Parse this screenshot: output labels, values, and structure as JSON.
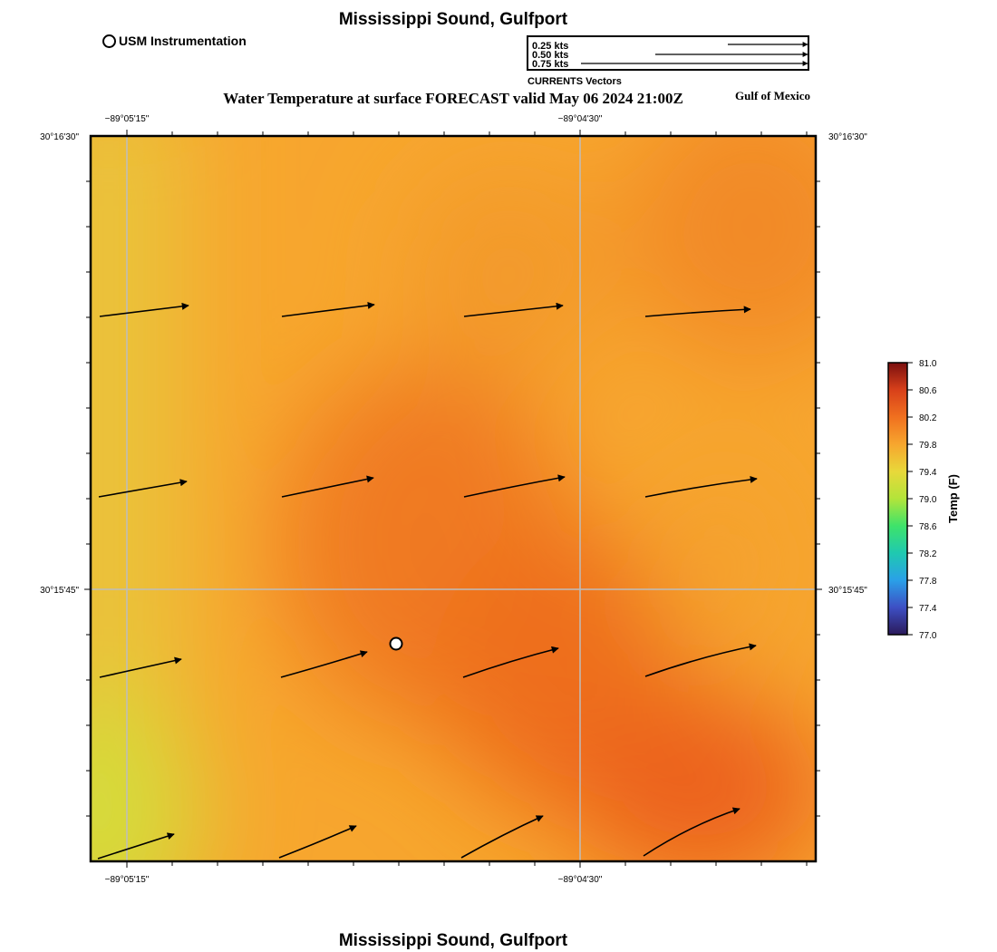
{
  "map": {
    "title": "Mississippi Sound, Gulfport",
    "footer_title": "Mississippi Sound, Gulfport",
    "forecast_title": "Water Temperature at surface FORECAST valid May 06 2024 21:00Z",
    "region_label": "Gulf of Mexico",
    "usm_legend_label": "USM Instrumentation",
    "longitude_ticks": [
      {
        "label": "−89°05'15\"",
        "value": -89.0875
      },
      {
        "label": "−89°04'30\"",
        "value": -89.075
      }
    ],
    "latitude_ticks": [
      {
        "label": "30°16'30\"",
        "value": 30.275
      },
      {
        "label": "30°15'45\"",
        "value": 30.2625
      }
    ]
  },
  "vector_legend": {
    "title": "CURRENTS Vectors",
    "entries": [
      {
        "label": "0.25 kts",
        "speed_kts": 0.25
      },
      {
        "label": "0.50 kts",
        "speed_kts": 0.5
      },
      {
        "label": "0.75 kts",
        "speed_kts": 0.75
      }
    ]
  },
  "colorbar": {
    "title": "Temp (F)",
    "min": 77.0,
    "max": 81.0,
    "ticks": [
      "81.0",
      "80.6",
      "80.2",
      "79.8",
      "79.4",
      "79.0",
      "78.6",
      "78.2",
      "77.8",
      "77.4",
      "77.0"
    ],
    "colors": [
      "#2b1a5a",
      "#3d4fc4",
      "#2aa0e8",
      "#1fc9b0",
      "#3ee36a",
      "#b3e43a",
      "#e8d83a",
      "#f7a62e",
      "#f0701f",
      "#d8401a",
      "#7a0f0f"
    ]
  },
  "chart_data": {
    "type": "heatmap",
    "title": "Water Temperature at surface FORECAST valid May 06 2024 21:00Z",
    "variable": "Temp (F)",
    "range": [
      77.0,
      81.0
    ],
    "current_vectors": [
      {
        "row": 1,
        "col": 1,
        "speed_kts": 0.54,
        "direction_deg": 84
      },
      {
        "row": 1,
        "col": 2,
        "speed_kts": 0.55,
        "direction_deg": 83
      },
      {
        "row": 1,
        "col": 3,
        "speed_kts": 0.6,
        "direction_deg": 85
      },
      {
        "row": 1,
        "col": 4,
        "speed_kts": 0.64,
        "direction_deg": 87
      },
      {
        "row": 2,
        "col": 1,
        "speed_kts": 0.54,
        "direction_deg": 78
      },
      {
        "row": 2,
        "col": 2,
        "speed_kts": 0.57,
        "direction_deg": 78
      },
      {
        "row": 2,
        "col": 3,
        "speed_kts": 0.62,
        "direction_deg": 80
      },
      {
        "row": 2,
        "col": 4,
        "speed_kts": 0.68,
        "direction_deg": 81
      },
      {
        "row": 3,
        "col": 1,
        "speed_kts": 0.51,
        "direction_deg": 74
      },
      {
        "row": 3,
        "col": 2,
        "speed_kts": 0.54,
        "direction_deg": 71
      },
      {
        "row": 3,
        "col": 3,
        "speed_kts": 0.61,
        "direction_deg": 72
      },
      {
        "row": 3,
        "col": 4,
        "speed_kts": 0.68,
        "direction_deg": 74
      },
      {
        "row": 4,
        "col": 1,
        "speed_kts": 0.5,
        "direction_deg": 70
      },
      {
        "row": 4,
        "col": 2,
        "speed_kts": 0.51,
        "direction_deg": 63
      },
      {
        "row": 4,
        "col": 3,
        "speed_kts": 0.55,
        "direction_deg": 60
      },
      {
        "row": 4,
        "col": 4,
        "speed_kts": 0.65,
        "direction_deg": 63
      }
    ],
    "usm_station": {
      "label": "USM Instrumentation"
    }
  }
}
